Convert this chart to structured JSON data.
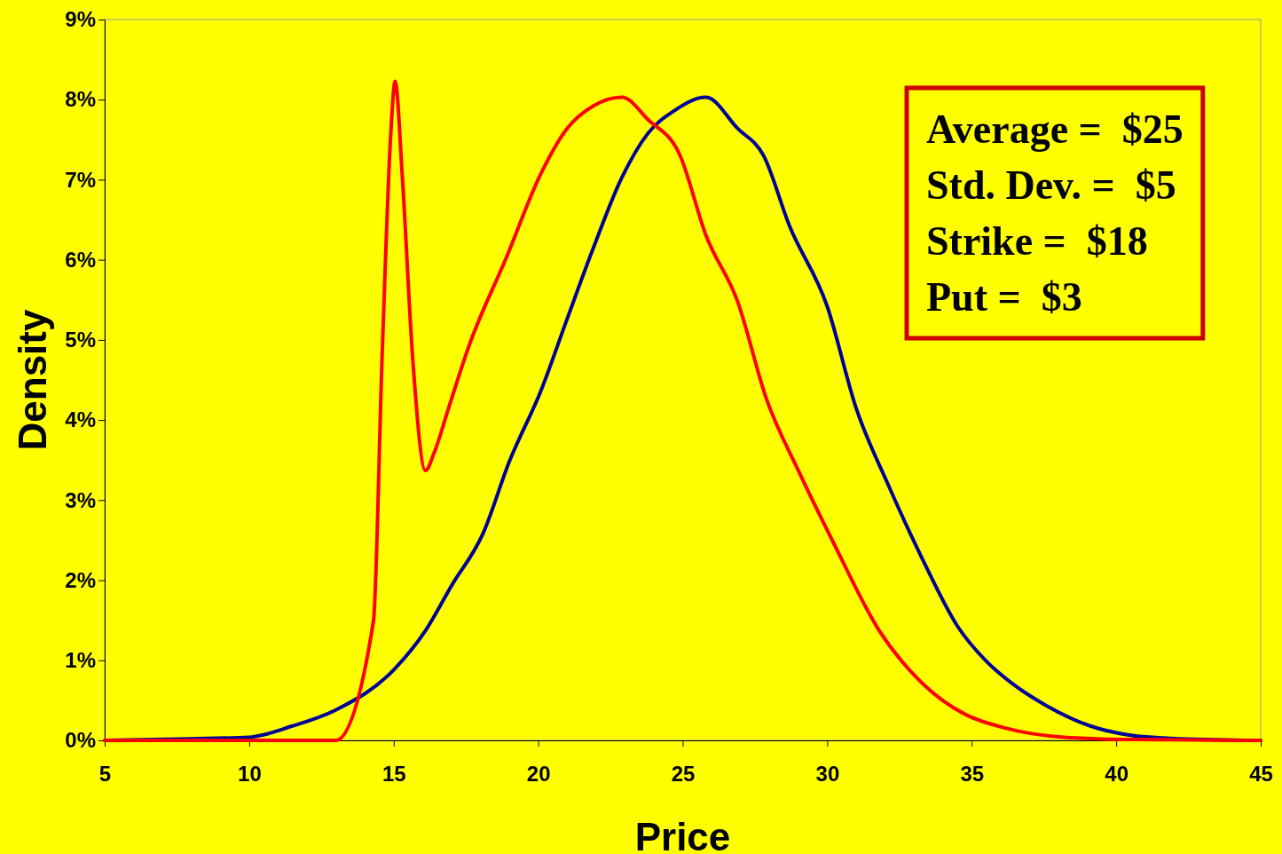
{
  "chart_data": {
    "type": "line",
    "xlabel": "Price",
    "ylabel": "Density",
    "xlim": [
      5,
      45
    ],
    "xticks": [
      5,
      10,
      15,
      20,
      25,
      30,
      35,
      40,
      45
    ],
    "ylim": [
      0,
      9
    ],
    "yticks": [
      {
        "value": 0,
        "label": "0%"
      },
      {
        "value": 1,
        "label": "1%"
      },
      {
        "value": 2,
        "label": "2%"
      },
      {
        "value": 3,
        "label": "3%"
      },
      {
        "value": 4,
        "label": "4%"
      },
      {
        "value": 5,
        "label": "5%"
      },
      {
        "value": 6,
        "label": "6%"
      },
      {
        "value": 7,
        "label": "7%"
      },
      {
        "value": 8,
        "label": "8%"
      },
      {
        "value": 9,
        "label": "9%"
      }
    ],
    "grid": false,
    "marker": "none",
    "line_style": "solid",
    "annotations": [
      "Average =  $25",
      "Std. Dev. =  $5",
      "Strike =  $18",
      "Put =  $3"
    ],
    "series": [
      {
        "color": "#000099",
        "x": [
          5,
          8,
          10,
          11.5,
          13,
          15,
          16.1,
          17,
          18.1,
          19,
          20.1,
          21,
          21.9,
          22.9,
          23.8,
          24.7,
          25.8,
          26.9,
          27.8,
          28.7,
          30,
          31,
          32.1,
          33.3,
          34.5,
          35.5,
          36.4,
          37.6,
          39.1,
          40.4,
          42.2,
          45
        ],
        "values": [
          0,
          0.02,
          0.04,
          0.18,
          0.38,
          0.88,
          1.37,
          1.93,
          2.59,
          3.48,
          4.37,
          5.26,
          6.14,
          7.03,
          7.58,
          7.86,
          8.03,
          7.64,
          7.3,
          6.42,
          5.42,
          4.15,
          3.2,
          2.26,
          1.43,
          0.99,
          0.71,
          0.43,
          0.18,
          0.07,
          0.02,
          0
        ]
      },
      {
        "color": "#ff0000",
        "x": [
          5,
          13,
          13.5,
          13.9,
          14.3,
          14.6,
          14.9,
          15.05,
          15.3,
          15.65,
          16.1,
          16.4,
          16.9,
          17.6,
          18.9,
          20.1,
          21,
          21.9,
          22.9,
          23.8,
          24.9,
          25.8,
          26.9,
          27.9,
          29,
          30.2,
          31.8,
          33.3,
          34.8,
          36.1,
          38.2,
          40.7,
          45
        ],
        "values": [
          0,
          0,
          null,
          null,
          1.49,
          4.8,
          7.58,
          8.23,
          7.03,
          4.81,
          3.37,
          3.59,
          4.15,
          4.92,
          6.03,
          7.08,
          7.64,
          7.92,
          8.03,
          7.75,
          7.31,
          6.31,
          5.48,
          4.26,
          3.37,
          2.48,
          1.37,
          0.71,
          0.32,
          0.16,
          0.04,
          0.01,
          0
        ]
      }
    ]
  }
}
